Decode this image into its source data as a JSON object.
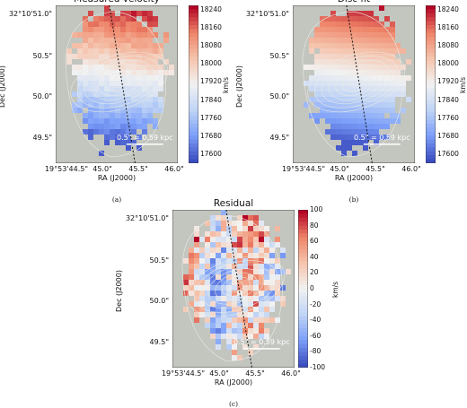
{
  "chart_data": [
    {
      "type": "heatmap",
      "title": "Measured velocity",
      "caption": "(a)",
      "xlabel": "RA (J2000)",
      "ylabel": "Dec (J2000)",
      "xticks": [
        "19°53'44.5\"",
        "45.0\"",
        "45.5\"",
        "46.0\""
      ],
      "yticks": [
        "32°10'51.0\"",
        "50.5\"",
        "50.0\"",
        "49.5\""
      ],
      "colorbar": {
        "label": "km/s",
        "ticks": [
          18240,
          18160,
          18080,
          18000,
          17920,
          17840,
          17760,
          17680,
          17600
        ],
        "min": 17560,
        "max": 18260,
        "cmap": "coolwarm"
      },
      "scalebar_label": "0.5\" = 0.59 kpc",
      "mode": "velocity"
    },
    {
      "type": "heatmap",
      "title": "Disc fit",
      "caption": "(b)",
      "xlabel": "RA (J2000)",
      "ylabel": "Dec (J2000)",
      "xticks": [
        "19°53'44.5\"",
        "45.0\"",
        "45.5\"",
        "46.0\""
      ],
      "yticks": [
        "32°10'51.0\"",
        "50.5\"",
        "50.0\"",
        "49.5\""
      ],
      "colorbar": {
        "label": "km/s",
        "ticks": [
          18240,
          18160,
          18080,
          18000,
          17920,
          17840,
          17760,
          17680,
          17600
        ],
        "min": 17560,
        "max": 18260,
        "cmap": "coolwarm"
      },
      "scalebar_label": "0.5\" = 0.59 kpc",
      "mode": "fit"
    },
    {
      "type": "heatmap",
      "title": "Residual",
      "caption": "(c)",
      "xlabel": "RA (J2000)",
      "ylabel": "Dec (J2000)",
      "xticks": [
        "19°53'44.5\"",
        "45.0\"",
        "45.5\"",
        "46.0\""
      ],
      "yticks": [
        "32°10'51.0\"",
        "50.5\"",
        "50.0\"",
        "49.5\""
      ],
      "colorbar": {
        "label": "km/s",
        "ticks": [
          100,
          80,
          60,
          40,
          20,
          0,
          -20,
          -40,
          -60,
          -80,
          -100
        ],
        "min": -100,
        "max": 100,
        "cmap": "coolwarm"
      },
      "scalebar_label": "0.5\" = 0.59 kpc",
      "mode": "residual"
    }
  ],
  "colors": {
    "background": "#c3c5bf",
    "contour": "#e8ebe6",
    "major_axis": "#111111",
    "scalebar": "#ffffff"
  }
}
